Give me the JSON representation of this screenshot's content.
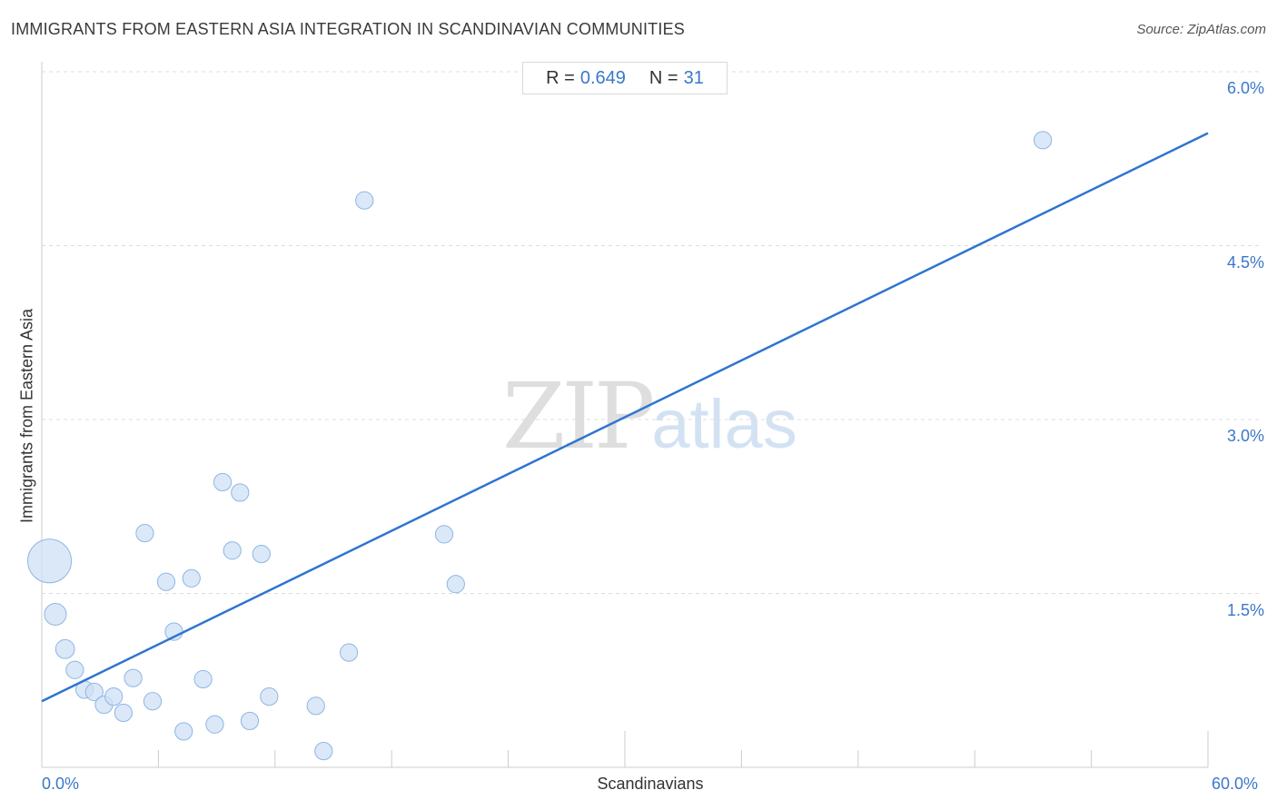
{
  "header": {
    "title": "IMMIGRANTS FROM EASTERN ASIA INTEGRATION IN SCANDINAVIAN COMMUNITIES",
    "source": "Source: ZipAtlas.com"
  },
  "stats": {
    "r_label": "R =",
    "r_value": "0.649",
    "n_label": "N =",
    "n_value": "31"
  },
  "watermark": {
    "zip": "ZIP",
    "atlas": "atlas"
  },
  "colors": {
    "accent": "#3a78c9",
    "point_fill": "#cfe0f5",
    "point_stroke": "#8fb6e3",
    "line": "#2f74d0",
    "grid": "#dddddd"
  },
  "chart_data": {
    "type": "scatter",
    "xlabel": "Scandinavians",
    "ylabel": "Immigrants from Eastern Asia",
    "xlim": [
      0,
      60
    ],
    "ylim": [
      0,
      6.0
    ],
    "x_tick_labels": [
      "0.0%",
      "60.0%"
    ],
    "y_ticks": [
      1.5,
      3.0,
      4.5,
      6.0
    ],
    "y_tick_labels": [
      "1.5%",
      "3.0%",
      "4.5%",
      "6.0%"
    ],
    "grid": true,
    "trendline": {
      "x": [
        0,
        60
      ],
      "y": [
        0.57,
        5.47
      ]
    },
    "points": [
      {
        "x": 0.4,
        "y": 1.78,
        "size": 3
      },
      {
        "x": 0.7,
        "y": 1.32,
        "size": 1.5
      },
      {
        "x": 1.2,
        "y": 1.02,
        "size": 1.3
      },
      {
        "x": 1.7,
        "y": 0.84,
        "size": 1.2
      },
      {
        "x": 2.2,
        "y": 0.67,
        "size": 1.2
      },
      {
        "x": 2.7,
        "y": 0.65,
        "size": 1.2
      },
      {
        "x": 3.2,
        "y": 0.54,
        "size": 1.2
      },
      {
        "x": 3.7,
        "y": 0.61,
        "size": 1.2
      },
      {
        "x": 4.2,
        "y": 0.47,
        "size": 1.2
      },
      {
        "x": 4.7,
        "y": 0.77,
        "size": 1.2
      },
      {
        "x": 5.3,
        "y": 2.02,
        "size": 1.2
      },
      {
        "x": 5.7,
        "y": 0.57,
        "size": 1.2
      },
      {
        "x": 6.4,
        "y": 1.6,
        "size": 1.2
      },
      {
        "x": 6.8,
        "y": 1.17,
        "size": 1.2
      },
      {
        "x": 7.3,
        "y": 0.31,
        "size": 1.2
      },
      {
        "x": 7.7,
        "y": 1.63,
        "size": 1.2
      },
      {
        "x": 8.3,
        "y": 0.76,
        "size": 1.2
      },
      {
        "x": 8.9,
        "y": 0.37,
        "size": 1.2
      },
      {
        "x": 9.3,
        "y": 2.46,
        "size": 1.2
      },
      {
        "x": 9.8,
        "y": 1.87,
        "size": 1.2
      },
      {
        "x": 10.2,
        "y": 2.37,
        "size": 1.2
      },
      {
        "x": 10.7,
        "y": 0.4,
        "size": 1.2
      },
      {
        "x": 11.3,
        "y": 1.84,
        "size": 1.2
      },
      {
        "x": 11.7,
        "y": 0.61,
        "size": 1.2
      },
      {
        "x": 14.1,
        "y": 0.53,
        "size": 1.2
      },
      {
        "x": 14.5,
        "y": 0.14,
        "size": 1.2
      },
      {
        "x": 15.8,
        "y": 0.99,
        "size": 1.2
      },
      {
        "x": 16.6,
        "y": 4.89,
        "size": 1.2
      },
      {
        "x": 20.7,
        "y": 2.01,
        "size": 1.2
      },
      {
        "x": 21.3,
        "y": 1.58,
        "size": 1.2
      },
      {
        "x": 51.5,
        "y": 5.41,
        "size": 1.2
      }
    ]
  }
}
